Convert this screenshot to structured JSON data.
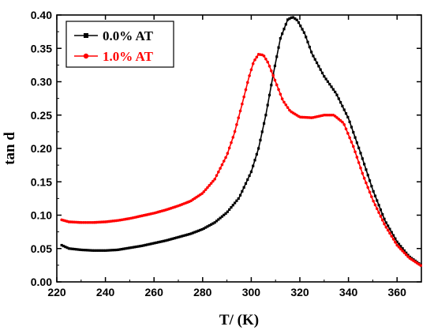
{
  "chart_data": {
    "type": "line",
    "xlabel": "T/ (K)",
    "ylabel": "tan d",
    "xlim": [
      220,
      370
    ],
    "ylim": [
      0.0,
      0.4
    ],
    "xticks": [
      220,
      240,
      260,
      280,
      300,
      320,
      340,
      360
    ],
    "xtick_labels": [
      "220",
      "240",
      "260",
      "280",
      "300",
      "320",
      "340",
      "360"
    ],
    "yticks": [
      0.0,
      0.05,
      0.1,
      0.15,
      0.2,
      0.25,
      0.3,
      0.35,
      0.4
    ],
    "ytick_labels": [
      "0.00",
      "0.05",
      "0.10",
      "0.15",
      "0.20",
      "0.25",
      "0.30",
      "0.35",
      "0.40"
    ],
    "grid": false,
    "legend": "top-left",
    "series": [
      {
        "name": "0.0% AT",
        "color": "#000000",
        "marker": "square",
        "x": [
          222,
          225,
          230,
          235,
          240,
          245,
          250,
          255,
          260,
          265,
          270,
          275,
          280,
          285,
          290,
          295,
          300,
          303,
          306,
          309,
          312,
          315,
          317,
          319,
          322,
          325,
          330,
          335,
          340,
          345,
          350,
          355,
          360,
          365,
          370
        ],
        "y": [
          0.055,
          0.05,
          0.048,
          0.047,
          0.047,
          0.048,
          0.051,
          0.054,
          0.058,
          0.062,
          0.067,
          0.072,
          0.079,
          0.089,
          0.104,
          0.126,
          0.165,
          0.2,
          0.25,
          0.31,
          0.365,
          0.393,
          0.397,
          0.392,
          0.372,
          0.342,
          0.308,
          0.282,
          0.245,
          0.193,
          0.138,
          0.092,
          0.06,
          0.038,
          0.025
        ]
      },
      {
        "name": "1.0% AT",
        "color": "#ff0000",
        "marker": "circle",
        "x": [
          222,
          225,
          230,
          235,
          240,
          245,
          250,
          255,
          260,
          265,
          270,
          275,
          280,
          285,
          290,
          293,
          296,
          299,
          301,
          303,
          305,
          307,
          310,
          313,
          316,
          320,
          325,
          330,
          334,
          338,
          342,
          346,
          350,
          355,
          360,
          365,
          370
        ],
        "y": [
          0.093,
          0.09,
          0.089,
          0.089,
          0.09,
          0.092,
          0.095,
          0.099,
          0.103,
          0.108,
          0.114,
          0.121,
          0.133,
          0.154,
          0.19,
          0.222,
          0.263,
          0.306,
          0.33,
          0.341,
          0.34,
          0.328,
          0.3,
          0.272,
          0.256,
          0.247,
          0.246,
          0.25,
          0.25,
          0.238,
          0.203,
          0.16,
          0.123,
          0.085,
          0.055,
          0.036,
          0.024
        ]
      }
    ]
  }
}
